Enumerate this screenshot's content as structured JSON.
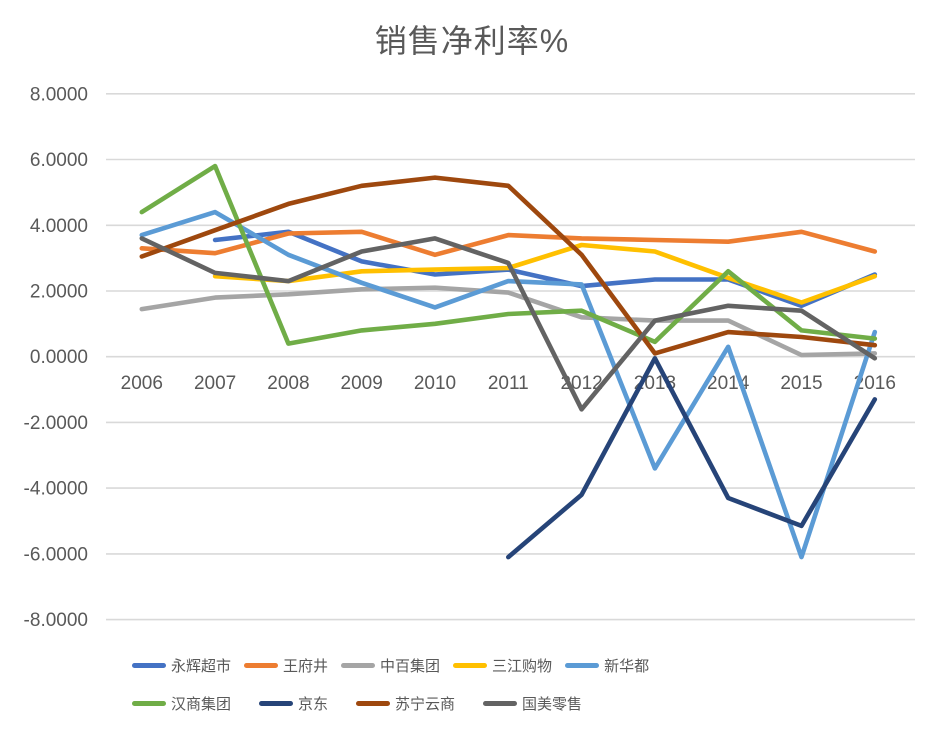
{
  "title": "销售净利率%",
  "colors": {
    "text": "#595959",
    "gridline": "#D9D9D9",
    "background": "#FFFFFF"
  },
  "chart_data": {
    "type": "line",
    "title": "销售净利率%",
    "xlabel": "",
    "ylabel": "",
    "ylim": [
      -8,
      8
    ],
    "y_tick_step": 2,
    "grid": true,
    "legend_position": "bottom",
    "x": [
      "2006",
      "2007",
      "2008",
      "2009",
      "2010",
      "2011",
      "2012",
      "2013",
      "2014",
      "2015",
      "2016"
    ],
    "y_tick_labels": [
      "8.0000",
      "6.0000",
      "4.0000",
      "2.0000",
      "0.0000",
      "-2.0000",
      "-4.0000",
      "-6.0000",
      "-8.0000"
    ],
    "series": [
      {
        "name": "永辉超市",
        "color": "#4472C4",
        "values": [
          null,
          3.55,
          3.8,
          2.9,
          2.5,
          2.65,
          2.15,
          2.35,
          2.35,
          1.55,
          2.5
        ]
      },
      {
        "name": "王府井",
        "color": "#ED7D31",
        "values": [
          3.3,
          3.15,
          3.75,
          3.8,
          3.1,
          3.7,
          3.6,
          3.55,
          3.5,
          3.8,
          3.2
        ]
      },
      {
        "name": "中百集团",
        "color": "#A5A5A5",
        "values": [
          1.45,
          1.8,
          1.9,
          2.05,
          2.1,
          1.95,
          1.2,
          1.1,
          1.1,
          0.05,
          0.1
        ]
      },
      {
        "name": "三江购物",
        "color": "#FFC000",
        "values": [
          null,
          2.45,
          2.3,
          2.6,
          2.65,
          2.7,
          3.4,
          3.2,
          2.4,
          1.65,
          2.45
        ]
      },
      {
        "name": "新华都",
        "color": "#5B9BD5",
        "values": [
          3.7,
          4.4,
          3.1,
          2.25,
          1.5,
          2.3,
          2.2,
          -3.4,
          0.3,
          -6.1,
          0.75
        ]
      },
      {
        "name": "汉商集团",
        "color": "#70AD47",
        "values": [
          4.4,
          5.8,
          0.4,
          0.8,
          1.0,
          1.3,
          1.4,
          0.45,
          2.6,
          0.8,
          0.55
        ]
      },
      {
        "name": "京东",
        "color": "#264478",
        "values": [
          null,
          null,
          null,
          null,
          null,
          -6.1,
          -4.2,
          -0.05,
          -4.3,
          -5.15,
          -1.3
        ]
      },
      {
        "name": "苏宁云商",
        "color": "#9E480E",
        "values": [
          3.05,
          3.85,
          4.65,
          5.2,
          5.45,
          5.2,
          3.1,
          0.1,
          0.75,
          0.6,
          0.35
        ]
      },
      {
        "name": "国美零售",
        "color": "#636363",
        "values": [
          3.6,
          2.55,
          2.3,
          3.2,
          3.6,
          2.85,
          -1.6,
          1.1,
          1.55,
          1.4,
          -0.05
        ]
      }
    ]
  }
}
